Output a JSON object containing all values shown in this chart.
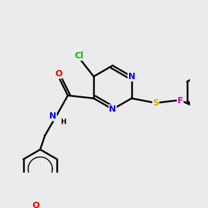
{
  "background_color": "#ebebeb",
  "atom_colors": {
    "C": "#000000",
    "N": "#0000ee",
    "O": "#dd0000",
    "S": "#ccaa00",
    "Cl": "#00bb00",
    "F": "#cc00cc",
    "H": "#000000"
  },
  "bond_color": "#000000",
  "bond_width": 1.8,
  "font_size": 9
}
